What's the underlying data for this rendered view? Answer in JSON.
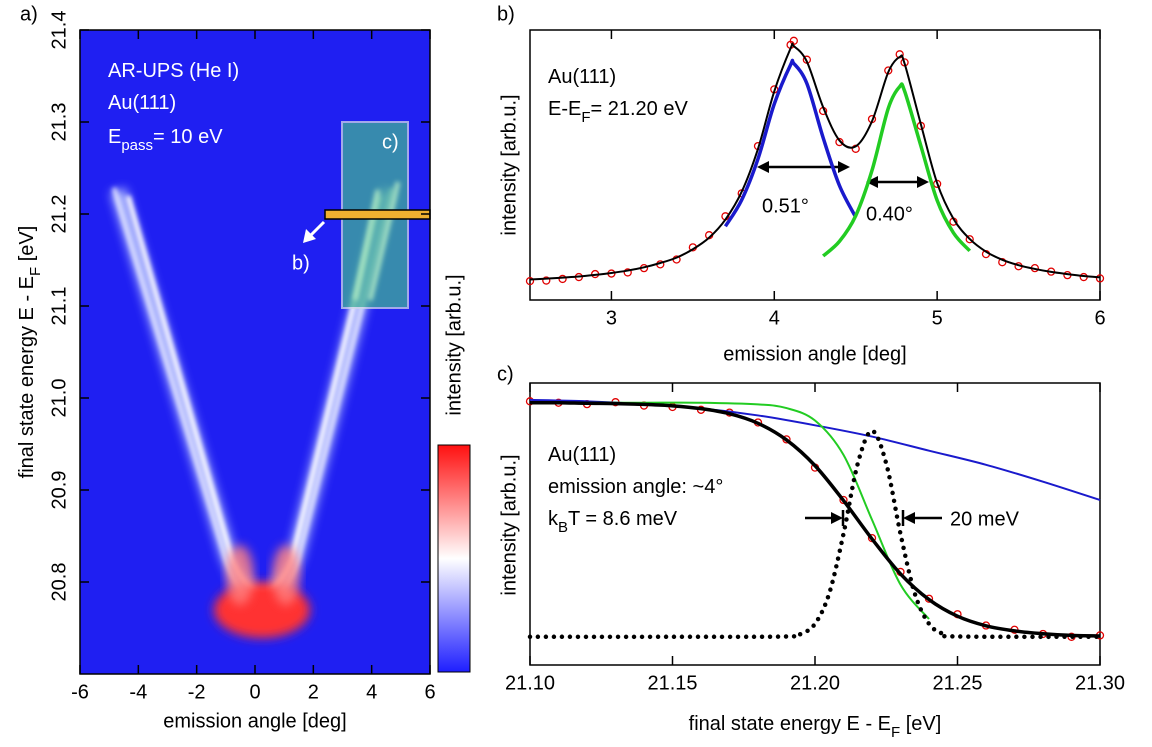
{
  "chart_data": [
    {
      "type": "heatmap",
      "panel_label": "a)",
      "xlabel": "emission angle [deg]",
      "ylabel": [
        "final state energy E - E",
        "F",
        " [eV]"
      ],
      "xlim": [
        -6,
        6
      ],
      "ylim": [
        20.7,
        21.4
      ],
      "xticks": [
        -6,
        -4,
        -2,
        0,
        2,
        4,
        6
      ],
      "yticks": [
        20.8,
        20.9,
        {
          "value": 21,
          "label": "21.0"
        },
        21.1,
        21.2,
        21.3,
        21.4
      ],
      "annotation_lines": [
        [
          "AR-UPS (He I)"
        ],
        [
          "Au(111)"
        ],
        [
          "E",
          "pass",
          "= 10 eV"
        ]
      ],
      "region_labels": [
        "c)",
        "b)"
      ],
      "colorbar_label": "intensity [arb.u.]",
      "colormap": [
        "#1e1eff",
        "#ffffff",
        "#ff1010"
      ]
    },
    {
      "type": "line",
      "panel_label": "b)",
      "xlabel": "emission angle [deg]",
      "ylabel": "intensity [arb.u.]",
      "xlim": [
        2.5,
        6
      ],
      "ylim": [
        0,
        1
      ],
      "xticks": [
        3,
        4,
        5,
        6
      ],
      "annotation_lines": [
        [
          "Au(111)"
        ],
        [
          "E-E",
          "F",
          "= 21.20 eV"
        ]
      ],
      "width_labels": [
        "0.51°",
        "0.40°"
      ],
      "series": [
        {
          "color": "#e00000",
          "style": "points",
          "x": [
            2.5,
            2.6,
            2.7,
            2.8,
            2.9,
            3.0,
            3.1,
            3.2,
            3.3,
            3.4,
            3.5,
            3.6,
            3.7,
            3.8,
            3.9,
            4.0,
            4.1,
            4.12,
            4.2,
            4.3,
            4.4,
            4.5,
            4.6,
            4.7,
            4.77,
            4.8,
            4.9,
            5.0,
            5.1,
            5.2,
            5.3,
            5.4,
            5.5,
            5.6,
            5.7,
            5.8,
            5.9,
            6.0
          ],
          "values": [
            0.07,
            0.072,
            0.078,
            0.085,
            0.096,
            0.098,
            0.102,
            0.118,
            0.132,
            0.15,
            0.195,
            0.24,
            0.31,
            0.395,
            0.57,
            0.78,
            0.945,
            0.96,
            0.89,
            0.7,
            0.585,
            0.56,
            0.67,
            0.85,
            0.91,
            0.88,
            0.645,
            0.43,
            0.29,
            0.225,
            0.17,
            0.14,
            0.125,
            0.118,
            0.105,
            0.092,
            0.085,
            0.08
          ]
        },
        {
          "color": "#1a1acc",
          "style": "bold-line",
          "x": [
            3.7,
            3.8,
            3.9,
            4.0,
            4.1,
            4.12,
            4.2,
            4.3,
            4.4,
            4.5
          ],
          "values": [
            0.273,
            0.371,
            0.523,
            0.726,
            0.871,
            0.876,
            0.802,
            0.601,
            0.424,
            0.307
          ]
        },
        {
          "color": "#22cc22",
          "style": "bold-line",
          "x": [
            4.3,
            4.4,
            4.5,
            4.6,
            4.7,
            4.77,
            4.8,
            4.9,
            5.0,
            5.1,
            5.2
          ],
          "values": [
            0.163,
            0.217,
            0.312,
            0.48,
            0.71,
            0.79,
            0.774,
            0.571,
            0.369,
            0.249,
            0.182
          ]
        },
        {
          "color": "#000000",
          "style": "line",
          "x": [
            2.5,
            2.6,
            2.7,
            2.8,
            2.9,
            3.0,
            3.1,
            3.2,
            3.3,
            3.4,
            3.5,
            3.6,
            3.7,
            3.8,
            3.9,
            4.0,
            4.1,
            4.12,
            4.2,
            4.3,
            4.4,
            4.5,
            4.6,
            4.7,
            4.77,
            4.8,
            4.9,
            5.0,
            5.1,
            5.2,
            5.3,
            5.4,
            5.5,
            5.6,
            5.7,
            5.8,
            5.9,
            6.0
          ],
          "values": [
            0.076,
            0.079,
            0.083,
            0.087,
            0.093,
            0.1,
            0.109,
            0.121,
            0.137,
            0.157,
            0.188,
            0.231,
            0.298,
            0.401,
            0.56,
            0.773,
            0.932,
            0.94,
            0.883,
            0.714,
            0.591,
            0.569,
            0.662,
            0.844,
            0.9,
            0.876,
            0.651,
            0.433,
            0.301,
            0.226,
            0.179,
            0.149,
            0.129,
            0.115,
            0.104,
            0.096,
            0.089,
            0.084
          ]
        }
      ]
    },
    {
      "type": "line",
      "panel_label": "c)",
      "xlabel": [
        "final state energy E - E",
        "F",
        " [eV]"
      ],
      "ylabel": "intensity [arb.u.]",
      "xlim": [
        21.1,
        21.3
      ],
      "ylim": [
        0,
        1
      ],
      "xticks": [
        {
          "value": 21.1,
          "label": "21.10"
        },
        21.15,
        {
          "value": 21.2,
          "label": "21.20"
        },
        21.25,
        {
          "value": 21.3,
          "label": "21.30"
        }
      ],
      "annotation_lines": [
        [
          "Au(111)"
        ],
        [
          "emission angle: ~4°"
        ],
        [
          "k",
          "B",
          "T = 8.6 meV"
        ]
      ],
      "width_labels": [
        "20 meV"
      ],
      "series": [
        {
          "color": "#e00000",
          "style": "points",
          "x": [
            21.1,
            21.11,
            21.12,
            21.13,
            21.14,
            21.15,
            21.16,
            21.17,
            21.18,
            21.19,
            21.2,
            21.21,
            21.22,
            21.23,
            21.24,
            21.25,
            21.26,
            21.27,
            21.28,
            21.29,
            21.3
          ],
          "values": [
            0.935,
            0.93,
            0.925,
            0.932,
            0.92,
            0.915,
            0.905,
            0.895,
            0.86,
            0.8,
            0.7,
            0.585,
            0.45,
            0.33,
            0.235,
            0.18,
            0.14,
            0.125,
            0.11,
            0.1,
            0.105
          ]
        },
        {
          "color": "#1a1acc",
          "style": "line",
          "x": [
            21.1,
            21.12,
            21.14,
            21.16,
            21.18,
            21.2,
            21.22,
            21.24,
            21.26,
            21.28,
            21.3
          ],
          "values": [
            0.94,
            0.935,
            0.925,
            0.91,
            0.885,
            0.85,
            0.81,
            0.76,
            0.71,
            0.65,
            0.585
          ]
        },
        {
          "color": "#22cc22",
          "style": "line",
          "x": [
            21.1,
            21.12,
            21.14,
            21.16,
            21.18,
            21.19,
            21.2,
            21.21,
            21.22,
            21.23,
            21.24
          ],
          "values": [
            0.93,
            0.93,
            0.93,
            0.93,
            0.924,
            0.911,
            0.867,
            0.745,
            0.515,
            0.285,
            0.163
          ]
        },
        {
          "color": "#000000",
          "style": "bold-line",
          "x": [
            21.1,
            21.11,
            21.12,
            21.13,
            21.14,
            21.15,
            21.16,
            21.17,
            21.18,
            21.19,
            21.2,
            21.21,
            21.22,
            21.23,
            21.24,
            21.25,
            21.26,
            21.27,
            21.28,
            21.29,
            21.3
          ],
          "values": [
            0.93,
            0.93,
            0.928,
            0.927,
            0.924,
            0.919,
            0.909,
            0.891,
            0.857,
            0.798,
            0.707,
            0.583,
            0.447,
            0.323,
            0.232,
            0.173,
            0.139,
            0.121,
            0.111,
            0.105,
            0.103
          ]
        },
        {
          "color": "#000000",
          "style": "dotted",
          "x": [
            21.1,
            21.15,
            21.19,
            21.195,
            21.2,
            21.205,
            21.21,
            21.215,
            21.22,
            21.225,
            21.23,
            21.235,
            21.24,
            21.245,
            21.25,
            21.3
          ],
          "values": [
            0.1,
            0.1,
            0.101,
            0.11,
            0.146,
            0.254,
            0.465,
            0.714,
            0.83,
            0.714,
            0.465,
            0.254,
            0.146,
            0.11,
            0.101,
            0.1
          ]
        }
      ]
    }
  ]
}
